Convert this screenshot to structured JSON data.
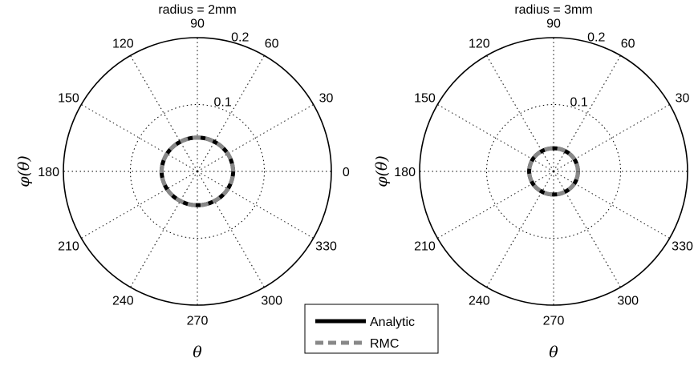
{
  "chart_data": [
    {
      "type": "polar-line",
      "title": "radius = 2mm",
      "xlabel": "θ",
      "ylabel": "φ(θ)",
      "rlim": [
        0,
        0.2
      ],
      "r_ticks": [
        "0.1",
        "0.2"
      ],
      "r_tick_values": [
        0.1,
        0.2
      ],
      "theta_ticks": [
        "0",
        "30",
        "60",
        "90",
        "120",
        "150",
        "180",
        "210",
        "240",
        "270",
        "300",
        "330"
      ],
      "theta_tick_values": [
        0,
        30,
        60,
        90,
        120,
        150,
        180,
        210,
        240,
        270,
        300,
        330
      ],
      "grid": true,
      "series": [
        {
          "name": "Analytic",
          "color": "#000000",
          "style": "solid",
          "theta": [
            0,
            30,
            60,
            90,
            120,
            150,
            180,
            210,
            240,
            270,
            300,
            330,
            360
          ],
          "r": [
            0.0535,
            0.0525,
            0.051,
            0.0505,
            0.051,
            0.0525,
            0.0535,
            0.0525,
            0.051,
            0.0505,
            0.051,
            0.0525,
            0.0535
          ]
        },
        {
          "name": "RMC",
          "color": "#888888",
          "style": "dashed",
          "theta": [
            0,
            30,
            60,
            90,
            120,
            150,
            180,
            210,
            240,
            270,
            300,
            330,
            360
          ],
          "r": [
            0.0535,
            0.0525,
            0.051,
            0.0505,
            0.051,
            0.0525,
            0.0535,
            0.0525,
            0.051,
            0.0505,
            0.051,
            0.0525,
            0.0535
          ]
        }
      ]
    },
    {
      "type": "polar-line",
      "title": "radius = 3mm",
      "xlabel": "θ",
      "ylabel": "φ(θ)",
      "rlim": [
        0,
        0.2
      ],
      "r_ticks": [
        "0.1",
        "0.2"
      ],
      "r_tick_values": [
        0.1,
        0.2
      ],
      "theta_ticks": [
        "0",
        "30",
        "60",
        "90",
        "120",
        "150",
        "180",
        "210",
        "240",
        "270",
        "300",
        "330"
      ],
      "theta_tick_values": [
        0,
        30,
        60,
        90,
        120,
        150,
        180,
        210,
        240,
        270,
        300,
        330
      ],
      "grid": true,
      "series": [
        {
          "name": "Analytic",
          "color": "#000000",
          "style": "solid",
          "theta": [
            0,
            30,
            60,
            90,
            120,
            150,
            180,
            210,
            240,
            270,
            300,
            330,
            360
          ],
          "r": [
            0.0365,
            0.036,
            0.035,
            0.0345,
            0.035,
            0.036,
            0.0365,
            0.036,
            0.035,
            0.0345,
            0.035,
            0.036,
            0.0365
          ]
        },
        {
          "name": "RMC",
          "color": "#888888",
          "style": "dashed",
          "theta": [
            0,
            30,
            60,
            90,
            120,
            150,
            180,
            210,
            240,
            270,
            300,
            330,
            360
          ],
          "r": [
            0.0365,
            0.036,
            0.035,
            0.0345,
            0.035,
            0.036,
            0.0365,
            0.036,
            0.035,
            0.0345,
            0.035,
            0.036,
            0.0365
          ]
        }
      ]
    }
  ],
  "legend": {
    "placement": "bottom-center",
    "entries": [
      {
        "label": "Analytic",
        "color": "#000000",
        "style": "solid"
      },
      {
        "label": "RMC",
        "color": "#888888",
        "style": "dashed"
      }
    ]
  }
}
